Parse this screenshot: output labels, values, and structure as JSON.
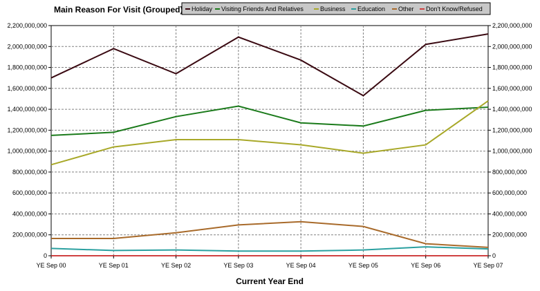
{
  "chart_data": {
    "type": "line",
    "legend_title": "Main Reason For Visit (Grouped)",
    "xlabel": "Current Year End",
    "ylabel": "",
    "categories": [
      "YE Sep 00",
      "YE Sep 01",
      "YE Sep 02",
      "YE Sep 03",
      "YE Sep 04",
      "YE Sep 05",
      "YE Sep 06",
      "YE Sep 07"
    ],
    "ylim": [
      0,
      2200000000
    ],
    "y_ticks": [
      {
        "value": 0,
        "label": "0"
      },
      {
        "value": 200000000,
        "label": "200,000,000"
      },
      {
        "value": 400000000,
        "label": "400,000,000"
      },
      {
        "value": 600000000,
        "label": "600,000,000"
      },
      {
        "value": 800000000,
        "label": "800,000,000"
      },
      {
        "value": 1000000000,
        "label": "1,000,000,000"
      },
      {
        "value": 1200000000,
        "label": "1,200,000,000"
      },
      {
        "value": 1400000000,
        "label": "1,400,000,000"
      },
      {
        "value": 1600000000,
        "label": "1,600,000,000"
      },
      {
        "value": 1800000000,
        "label": "1,800,000,000"
      },
      {
        "value": 2000000000,
        "label": "2,000,000,000"
      },
      {
        "value": 2200000000,
        "label": "2,200,000,000"
      }
    ],
    "grid": true,
    "legend_position": "top",
    "series": [
      {
        "name": "Holiday",
        "color": "#3a0a12",
        "values": [
          1700000000,
          1980000000,
          1740000000,
          2090000000,
          1870000000,
          1530000000,
          2020000000,
          2120000000
        ]
      },
      {
        "name": "Visiting Friends And Relatives",
        "color": "#1a7a1a",
        "values": [
          1150000000,
          1180000000,
          1330000000,
          1430000000,
          1270000000,
          1240000000,
          1390000000,
          1420000000
        ]
      },
      {
        "name": "Business",
        "color": "#a8a828",
        "values": [
          870000000,
          1040000000,
          1110000000,
          1110000000,
          1060000000,
          980000000,
          1060000000,
          1480000000
        ]
      },
      {
        "name": "Education",
        "color": "#2aa0a0",
        "values": [
          70000000,
          50000000,
          55000000,
          45000000,
          45000000,
          55000000,
          85000000,
          65000000
        ]
      },
      {
        "name": "Other",
        "color": "#a86a2a",
        "values": [
          165000000,
          165000000,
          220000000,
          295000000,
          325000000,
          280000000,
          115000000,
          80000000
        ]
      },
      {
        "name": "Don't Know/Refused",
        "color": "#d04040",
        "values": [
          0,
          0,
          0,
          0,
          0,
          0,
          0,
          0
        ]
      }
    ]
  }
}
